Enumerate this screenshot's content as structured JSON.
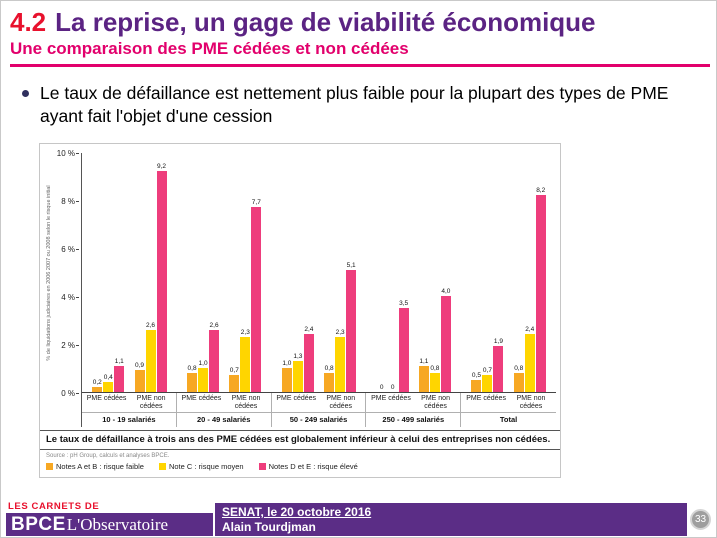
{
  "colors": {
    "accent_red": "#E8112D",
    "title_purple": "#5B2383",
    "magenta": "#E2006C",
    "footer_purple": "#5B2D86",
    "bar_orange": "#F7A823",
    "bar_yellow": "#FFD500",
    "bar_pink": "#EE3D7C",
    "page_circle_gray": "#9E9E9E"
  },
  "slide": {
    "title_number": "4.2",
    "title": "La reprise, un gage de viabilité économique",
    "subtitle": "Une comparaison des PME cédées et non cédées",
    "bullet_text": "Le taux de défaillance est nettement plus faible pour la plupart des types de PME ayant fait l'objet d'une cession",
    "page_number": "33"
  },
  "footer": {
    "carnets_label": "LES CARNETS DE",
    "brand": "BPCE",
    "brand_suffix": "L'Observatoire",
    "event": "SENAT, le 20 octobre 2016",
    "author": "Alain Tourdjman"
  },
  "chart_data": {
    "type": "bar",
    "title": "",
    "ylabel": "% de liquidations judiciaires en 2006 2007 ou 2008 selon le risque initial",
    "ylim": [
      0,
      10
    ],
    "yticks": [
      "10 %",
      "8 %",
      "6 %",
      "4 %",
      "2 %",
      "0 %"
    ],
    "series_colors": [
      "#F7A823",
      "#FFD500",
      "#EE3D7C"
    ],
    "series_names": [
      "Notes A et B : risque faible",
      "Note C : risque moyen",
      "Notes D et E : risque élevé"
    ],
    "groups": [
      {
        "label": "10 - 19 salariés",
        "subgroups": [
          {
            "label": "PME cédées",
            "values": [
              0.2,
              0.4,
              1.1
            ],
            "labels": [
              "0,2",
              "0,4",
              "1,1"
            ]
          },
          {
            "label": "PME non cédées",
            "values": [
              0.9,
              2.6,
              9.2
            ],
            "labels": [
              "0,9",
              "2,6",
              "9,2"
            ]
          }
        ]
      },
      {
        "label": "20 - 49 salariés",
        "subgroups": [
          {
            "label": "PME cédées",
            "values": [
              0.8,
              1.0,
              2.6
            ],
            "labels": [
              "0,8",
              "1,0",
              "2,6"
            ]
          },
          {
            "label": "PME non cédées",
            "values": [
              0.7,
              2.3,
              7.7
            ],
            "labels": [
              "0,7",
              "2,3",
              "7,7"
            ]
          }
        ]
      },
      {
        "label": "50 - 249 salariés",
        "subgroups": [
          {
            "label": "PME cédées",
            "values": [
              1.0,
              1.3,
              2.4
            ],
            "labels": [
              "1,0",
              "1,3",
              "2,4"
            ]
          },
          {
            "label": "PME non cédées",
            "values": [
              0.8,
              2.3,
              5.1
            ],
            "labels": [
              "0,8",
              "2,3",
              "5,1"
            ]
          }
        ]
      },
      {
        "label": "250 - 499 salariés",
        "subgroups": [
          {
            "label": "PME cédées",
            "values": [
              0,
              0,
              3.5
            ],
            "labels": [
              "0",
              "0",
              "3,5"
            ]
          },
          {
            "label": "PME non cédées",
            "values": [
              1.1,
              0.8,
              4.0
            ],
            "labels": [
              "1,1",
              "0,8",
              "4,0"
            ]
          }
        ]
      },
      {
        "label": "Total",
        "subgroups": [
          {
            "label": "PME cédées",
            "values": [
              0.5,
              0.7,
              1.9
            ],
            "labels": [
              "0,5",
              "0,7",
              "1,9"
            ]
          },
          {
            "label": "PME non cédées",
            "values": [
              0.8,
              2.4,
              8.2
            ],
            "labels": [
              "0,8",
              "2,4",
              "8,2"
            ]
          }
        ]
      }
    ],
    "legend": [
      {
        "label": "Notes A et B : risque faible",
        "color": "#F7A823"
      },
      {
        "label": "Note C : risque moyen",
        "color": "#FFD500"
      },
      {
        "label": "Notes D et E : risque élevé",
        "color": "#EE3D7C"
      }
    ],
    "statement": "Le taux de défaillance à trois ans des PME cédées est globalement inférieur à celui des entreprises non cédées.",
    "source": "Source : pH Group, calculs et analyses BPCE."
  }
}
